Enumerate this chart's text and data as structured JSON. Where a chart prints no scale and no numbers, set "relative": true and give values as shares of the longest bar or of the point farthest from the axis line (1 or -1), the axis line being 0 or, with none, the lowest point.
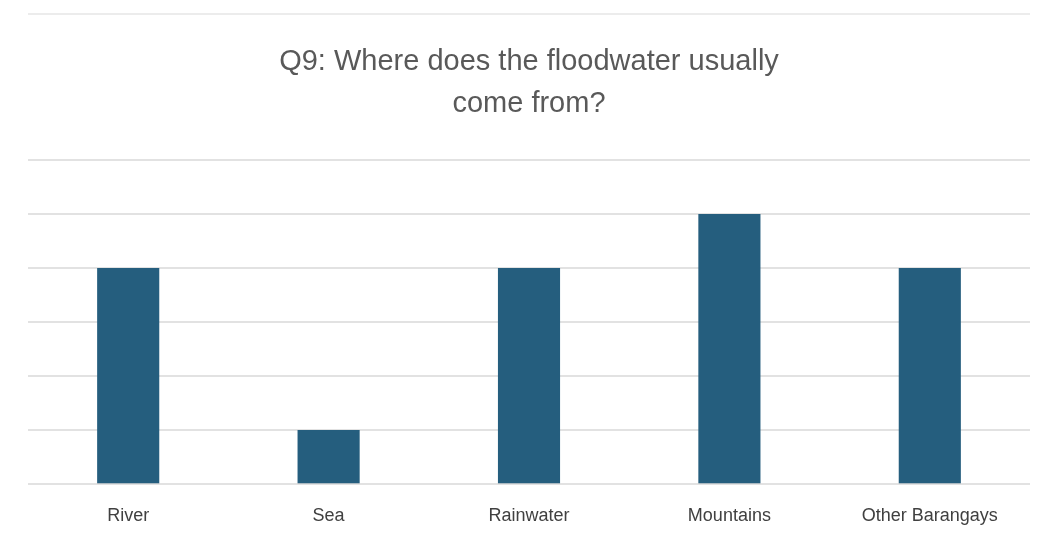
{
  "chart_data": {
    "type": "bar",
    "title": "Q9: Where does the floodwater usually come from?",
    "categories": [
      "River",
      "Sea",
      "Rainwater",
      "Mountains",
      "Other Barangays"
    ],
    "values": [
      0.8,
      0.2,
      0.8,
      1,
      0.8
    ],
    "color": "#255e7e",
    "relative": true,
    "grid": "y"
  }
}
